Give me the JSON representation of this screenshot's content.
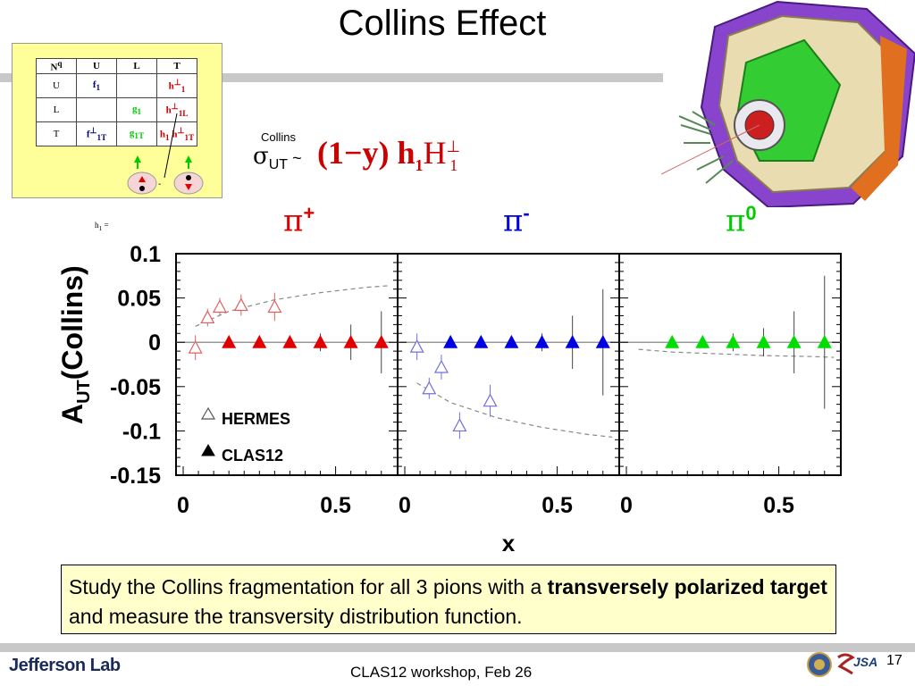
{
  "slide": {
    "title": "Collins Effect",
    "formula_prefix_small": "Collins",
    "formula_sigma": "σ",
    "formula_sub": "UT",
    "formula_tilde": " ~",
    "formula_main": "(1−y) h",
    "formula_sub1": "1",
    "formula_H": "H",
    "formula_sup": "⊥",
    "formula_sub2": "1",
    "pi_labels": [
      {
        "base": "π",
        "sup": "+",
        "color": "#e00000"
      },
      {
        "base": "π",
        "sup": "-",
        "color": "#0000e0"
      },
      {
        "base": "π",
        "sup": "0",
        "color": "#00cc00"
      }
    ],
    "text_normal_1": "Study the Collins fragmentation for all 3 pions with a ",
    "text_bold_1": "transversely polarized target",
    "text_normal_2": " and measure the transversity distribution function.",
    "footer": "CLAS12 workshop,  Feb 26",
    "page_number": "17",
    "logo_text": "Jefferson Lab",
    "jsa_text": "JSA"
  },
  "matrix": {
    "corner_n": "N",
    "corner_q": "q",
    "col_headers": [
      "U",
      "L",
      "T"
    ],
    "rows": [
      {
        "label": "U",
        "cells": [
          {
            "t": "f",
            "s": "1",
            "c": "blk"
          },
          {
            "t": "",
            "s": "",
            "c": ""
          },
          {
            "t": "h",
            "s": "1",
            "c": "red",
            "sp": "⊥"
          }
        ]
      },
      {
        "label": "L",
        "cells": [
          {
            "t": "",
            "s": "",
            "c": ""
          },
          {
            "t": "g",
            "s": "1",
            "c": "grn"
          },
          {
            "t": "h",
            "s": "1L",
            "c": "red",
            "sp": "⊥"
          }
        ]
      },
      {
        "label": "T",
        "cells": [
          {
            "t": "f",
            "s": "1T",
            "c": "blk",
            "sp": "⊥"
          },
          {
            "t": "g",
            "s": "1T",
            "c": "grn"
          },
          {
            "t": "h",
            "s": "1",
            "c": "red",
            "extra": "h",
            "extra_s": "1T",
            "extra_sp": "⊥"
          }
        ]
      }
    ],
    "h1_equation": "h",
    "h1_sub": "1",
    "h1_eq_sign": "="
  },
  "chart_data": [
    {
      "type": "scatter",
      "panel": "pi+",
      "xlabel": "x",
      "ylabel": "A_UT(Collins)",
      "xlim": [
        0,
        0.68
      ],
      "ylim": [
        -0.15,
        0.1
      ],
      "x_ticks": [
        "0",
        "0.5"
      ],
      "y_ticks": [
        "0.1",
        "0.05",
        "0",
        "-0.05",
        "-0.1",
        "-0.15"
      ],
      "legend": [
        {
          "name": "HERMES",
          "marker": "open-triangle"
        },
        {
          "name": "CLAS12",
          "marker": "filled-triangle"
        }
      ],
      "series": [
        {
          "name": "HERMES",
          "color": "#e06060",
          "points": [
            [
              0.04,
              -0.006,
              0.014
            ],
            [
              0.08,
              0.028,
              0.01
            ],
            [
              0.12,
              0.04,
              0.01
            ],
            [
              0.19,
              0.042,
              0.012
            ],
            [
              0.3,
              0.04,
              0.016
            ]
          ]
        },
        {
          "name": "CLAS12",
          "color": "#e00000",
          "points": [
            [
              0.15,
              0.0,
              0.002
            ],
            [
              0.25,
              0.0,
              0.003
            ],
            [
              0.35,
              0.0,
              0.005
            ],
            [
              0.45,
              0.0,
              0.01
            ],
            [
              0.55,
              0.0,
              0.02
            ],
            [
              0.65,
              0.0,
              0.035
            ]
          ]
        }
      ],
      "fit_curve": [
        [
          0.04,
          0.018
        ],
        [
          0.15,
          0.035
        ],
        [
          0.3,
          0.048
        ],
        [
          0.45,
          0.056
        ],
        [
          0.6,
          0.062
        ],
        [
          0.68,
          0.064
        ]
      ]
    },
    {
      "type": "scatter",
      "panel": "pi-",
      "xlabel": "x",
      "xlim": [
        0,
        0.68
      ],
      "ylim": [
        -0.15,
        0.1
      ],
      "x_ticks": [
        "0",
        "0.5"
      ],
      "series": [
        {
          "name": "HERMES",
          "color": "#7070e0",
          "points": [
            [
              0.04,
              -0.005,
              0.015
            ],
            [
              0.08,
              -0.052,
              0.012
            ],
            [
              0.12,
              -0.028,
              0.014
            ],
            [
              0.18,
              -0.094,
              0.015
            ],
            [
              0.28,
              -0.066,
              0.018
            ]
          ]
        },
        {
          "name": "CLAS12",
          "color": "#0000e0",
          "points": [
            [
              0.15,
              0.0,
              0.002
            ],
            [
              0.25,
              0.0,
              0.003
            ],
            [
              0.35,
              0.0,
              0.005
            ],
            [
              0.45,
              0.0,
              0.01
            ],
            [
              0.55,
              0.0,
              0.03
            ],
            [
              0.65,
              0.0,
              0.06
            ]
          ]
        }
      ],
      "fit_curve": [
        [
          0.04,
          -0.046
        ],
        [
          0.15,
          -0.068
        ],
        [
          0.3,
          -0.085
        ],
        [
          0.45,
          -0.096
        ],
        [
          0.6,
          -0.104
        ],
        [
          0.68,
          -0.107
        ]
      ]
    },
    {
      "type": "scatter",
      "panel": "pi0",
      "xlabel": "x",
      "xlim": [
        0,
        0.68
      ],
      "ylim": [
        -0.15,
        0.1
      ],
      "x_ticks": [
        "0",
        "0.5"
      ],
      "series": [
        {
          "name": "CLAS12",
          "color": "#00dd00",
          "points": [
            [
              0.15,
              0.0,
              0.004
            ],
            [
              0.25,
              0.0,
              0.006
            ],
            [
              0.35,
              0.0,
              0.01
            ],
            [
              0.45,
              0.0,
              0.016
            ],
            [
              0.55,
              0.0,
              0.035
            ],
            [
              0.65,
              0.0,
              0.075
            ]
          ]
        }
      ],
      "fit_curve": [
        [
          0.04,
          -0.008
        ],
        [
          0.15,
          -0.011
        ],
        [
          0.3,
          -0.013
        ],
        [
          0.45,
          -0.015
        ],
        [
          0.6,
          -0.016
        ],
        [
          0.68,
          -0.017
        ]
      ]
    }
  ]
}
